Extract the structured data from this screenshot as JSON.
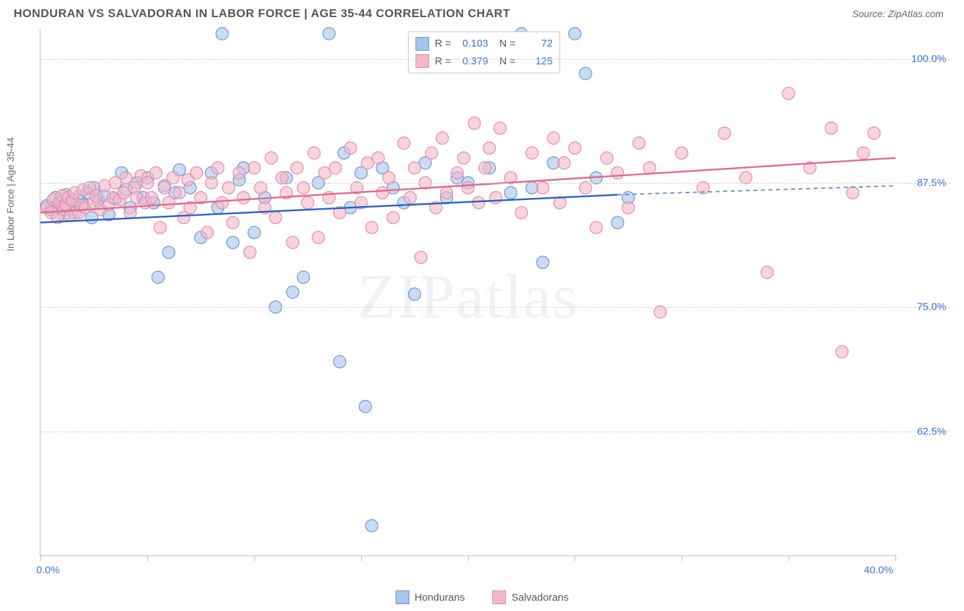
{
  "title": "HONDURAN VS SALVADORAN IN LABOR FORCE | AGE 35-44 CORRELATION CHART",
  "source": "Source: ZipAtlas.com",
  "y_axis_label": "In Labor Force | Age 35-44",
  "watermark": "ZIPatlas",
  "chart": {
    "type": "scatter",
    "xlim": [
      0,
      40
    ],
    "ylim": [
      50,
      103
    ],
    "x_ticks_major": [
      0,
      40
    ],
    "x_ticks_minor": [
      5,
      10,
      15,
      20,
      25,
      30,
      35
    ],
    "x_tick_labels": {
      "0": "0.0%",
      "40": "40.0%"
    },
    "y_ticks": [
      62.5,
      75,
      87.5,
      100
    ],
    "y_tick_labels": {
      "62.5": "62.5%",
      "75": "75.0%",
      "87.5": "87.5%",
      "100": "100.0%"
    },
    "background_color": "#ffffff",
    "grid_color": "#d0d0d0",
    "series": [
      {
        "name": "Hondurans",
        "marker_fill": "#a7c4eb",
        "marker_stroke": "#6b94cf",
        "line_color": "#2a63c8",
        "r_value": "0.103",
        "n_value": "72",
        "regression": {
          "x1": 0,
          "y1": 83.5,
          "x2": 27,
          "y2": 86.3,
          "x2_dash": 40,
          "y2_dash": 87.2
        },
        "points": [
          [
            0.3,
            85.2
          ],
          [
            0.5,
            84.8
          ],
          [
            0.7,
            86.0
          ],
          [
            0.8,
            85.1
          ],
          [
            1.0,
            85.5
          ],
          [
            1.1,
            84.2
          ],
          [
            1.2,
            86.3
          ],
          [
            1.3,
            85.0
          ],
          [
            1.5,
            85.8
          ],
          [
            1.6,
            84.5
          ],
          [
            1.8,
            86.1
          ],
          [
            2.0,
            85.3
          ],
          [
            2.2,
            86.5
          ],
          [
            2.4,
            84.0
          ],
          [
            2.5,
            87.0
          ],
          [
            2.7,
            85.7
          ],
          [
            3.0,
            86.2
          ],
          [
            3.2,
            84.3
          ],
          [
            3.5,
            85.9
          ],
          [
            3.8,
            88.5
          ],
          [
            4.0,
            86.8
          ],
          [
            4.2,
            85.0
          ],
          [
            4.5,
            87.5
          ],
          [
            4.8,
            86.0
          ],
          [
            5.0,
            88.0
          ],
          [
            5.3,
            85.5
          ],
          [
            5.5,
            78.0
          ],
          [
            5.8,
            87.2
          ],
          [
            6.0,
            80.5
          ],
          [
            6.3,
            86.5
          ],
          [
            6.5,
            88.8
          ],
          [
            7.0,
            87.0
          ],
          [
            7.5,
            82.0
          ],
          [
            8.0,
            88.5
          ],
          [
            8.3,
            85.0
          ],
          [
            8.5,
            102.5
          ],
          [
            9.0,
            81.5
          ],
          [
            9.3,
            87.8
          ],
          [
            9.5,
            89.0
          ],
          [
            10.0,
            82.5
          ],
          [
            10.5,
            86.0
          ],
          [
            11.0,
            75.0
          ],
          [
            11.5,
            88.0
          ],
          [
            11.8,
            76.5
          ],
          [
            12.3,
            78.0
          ],
          [
            13.0,
            87.5
          ],
          [
            13.5,
            102.5
          ],
          [
            14.0,
            69.5
          ],
          [
            14.2,
            90.5
          ],
          [
            14.5,
            85.0
          ],
          [
            15.0,
            88.5
          ],
          [
            15.2,
            65.0
          ],
          [
            15.5,
            53.0
          ],
          [
            16.0,
            89.0
          ],
          [
            16.5,
            87.0
          ],
          [
            17.0,
            85.5
          ],
          [
            17.5,
            76.3
          ],
          [
            18.0,
            89.5
          ],
          [
            19.0,
            86.0
          ],
          [
            19.5,
            88.0
          ],
          [
            20.0,
            87.5
          ],
          [
            21.0,
            89.0
          ],
          [
            22.0,
            86.5
          ],
          [
            22.5,
            102.5
          ],
          [
            23.0,
            87.0
          ],
          [
            23.5,
            79.5
          ],
          [
            24.0,
            89.5
          ],
          [
            25.0,
            102.5
          ],
          [
            25.5,
            98.5
          ],
          [
            26.0,
            88.0
          ],
          [
            27.0,
            83.5
          ],
          [
            27.5,
            86.0
          ]
        ]
      },
      {
        "name": "Salvadorans",
        "marker_fill": "#f4b8c9",
        "marker_stroke": "#e48aa6",
        "line_color": "#e26a8f",
        "r_value": "0.379",
        "n_value": "125",
        "regression": {
          "x1": 0,
          "y1": 84.5,
          "x2": 40,
          "y2": 90.0
        },
        "points": [
          [
            0.3,
            85.0
          ],
          [
            0.5,
            84.5
          ],
          [
            0.6,
            85.8
          ],
          [
            0.8,
            84.0
          ],
          [
            0.9,
            85.5
          ],
          [
            1.0,
            86.2
          ],
          [
            1.1,
            84.8
          ],
          [
            1.2,
            85.3
          ],
          [
            1.3,
            86.0
          ],
          [
            1.4,
            84.2
          ],
          [
            1.5,
            85.7
          ],
          [
            1.6,
            86.5
          ],
          [
            1.8,
            84.5
          ],
          [
            1.9,
            85.2
          ],
          [
            2.0,
            86.8
          ],
          [
            2.1,
            85.0
          ],
          [
            2.3,
            87.0
          ],
          [
            2.5,
            85.5
          ],
          [
            2.6,
            86.2
          ],
          [
            2.8,
            84.8
          ],
          [
            3.0,
            87.2
          ],
          [
            3.2,
            85.3
          ],
          [
            3.4,
            86.0
          ],
          [
            3.5,
            87.5
          ],
          [
            3.7,
            85.8
          ],
          [
            3.9,
            86.5
          ],
          [
            4.0,
            88.0
          ],
          [
            4.2,
            84.5
          ],
          [
            4.4,
            87.0
          ],
          [
            4.5,
            86.0
          ],
          [
            4.7,
            88.2
          ],
          [
            4.9,
            85.5
          ],
          [
            5.0,
            87.5
          ],
          [
            5.2,
            86.0
          ],
          [
            5.4,
            88.5
          ],
          [
            5.6,
            83.0
          ],
          [
            5.8,
            87.0
          ],
          [
            6.0,
            85.5
          ],
          [
            6.2,
            88.0
          ],
          [
            6.5,
            86.5
          ],
          [
            6.7,
            84.0
          ],
          [
            6.9,
            87.8
          ],
          [
            7.0,
            85.0
          ],
          [
            7.3,
            88.5
          ],
          [
            7.5,
            86.0
          ],
          [
            7.8,
            82.5
          ],
          [
            8.0,
            87.5
          ],
          [
            8.3,
            89.0
          ],
          [
            8.5,
            85.5
          ],
          [
            8.8,
            87.0
          ],
          [
            9.0,
            83.5
          ],
          [
            9.3,
            88.5
          ],
          [
            9.5,
            86.0
          ],
          [
            9.8,
            80.5
          ],
          [
            10.0,
            89.0
          ],
          [
            10.3,
            87.0
          ],
          [
            10.5,
            85.0
          ],
          [
            10.8,
            90.0
          ],
          [
            11.0,
            84.0
          ],
          [
            11.3,
            88.0
          ],
          [
            11.5,
            86.5
          ],
          [
            11.8,
            81.5
          ],
          [
            12.0,
            89.0
          ],
          [
            12.3,
            87.0
          ],
          [
            12.5,
            85.5
          ],
          [
            12.8,
            90.5
          ],
          [
            13.0,
            82.0
          ],
          [
            13.3,
            88.5
          ],
          [
            13.5,
            86.0
          ],
          [
            13.8,
            89.0
          ],
          [
            14.0,
            84.5
          ],
          [
            14.5,
            91.0
          ],
          [
            14.8,
            87.0
          ],
          [
            15.0,
            85.5
          ],
          [
            15.3,
            89.5
          ],
          [
            15.5,
            83.0
          ],
          [
            15.8,
            90.0
          ],
          [
            16.0,
            86.5
          ],
          [
            16.3,
            88.0
          ],
          [
            16.5,
            84.0
          ],
          [
            17.0,
            91.5
          ],
          [
            17.3,
            86.0
          ],
          [
            17.5,
            89.0
          ],
          [
            17.8,
            80.0
          ],
          [
            18.0,
            87.5
          ],
          [
            18.3,
            90.5
          ],
          [
            18.5,
            85.0
          ],
          [
            18.8,
            92.0
          ],
          [
            19.0,
            86.5
          ],
          [
            19.5,
            88.5
          ],
          [
            19.8,
            90.0
          ],
          [
            20.0,
            87.0
          ],
          [
            20.3,
            93.5
          ],
          [
            20.5,
            85.5
          ],
          [
            20.8,
            89.0
          ],
          [
            21.0,
            91.0
          ],
          [
            21.3,
            86.0
          ],
          [
            21.5,
            93.0
          ],
          [
            22.0,
            88.0
          ],
          [
            22.5,
            84.5
          ],
          [
            23.0,
            90.5
          ],
          [
            23.5,
            87.0
          ],
          [
            24.0,
            92.0
          ],
          [
            24.3,
            85.5
          ],
          [
            24.5,
            89.5
          ],
          [
            25.0,
            91.0
          ],
          [
            25.5,
            87.0
          ],
          [
            26.0,
            83.0
          ],
          [
            26.5,
            90.0
          ],
          [
            27.0,
            88.5
          ],
          [
            27.5,
            85.0
          ],
          [
            28.0,
            91.5
          ],
          [
            28.5,
            89.0
          ],
          [
            29.0,
            74.5
          ],
          [
            30.0,
            90.5
          ],
          [
            31.0,
            87.0
          ],
          [
            32.0,
            92.5
          ],
          [
            33.0,
            88.0
          ],
          [
            34.0,
            78.5
          ],
          [
            35.0,
            96.5
          ],
          [
            36.0,
            89.0
          ],
          [
            37.0,
            93.0
          ],
          [
            37.5,
            70.5
          ],
          [
            38.0,
            86.5
          ],
          [
            38.5,
            90.5
          ],
          [
            39.0,
            92.5
          ]
        ]
      }
    ]
  },
  "legend": {
    "items": [
      {
        "label": "Hondurans",
        "fill": "#a7c4eb",
        "stroke": "#6b94cf"
      },
      {
        "label": "Salvadorans",
        "fill": "#f4b8c9",
        "stroke": "#e48aa6"
      }
    ]
  }
}
